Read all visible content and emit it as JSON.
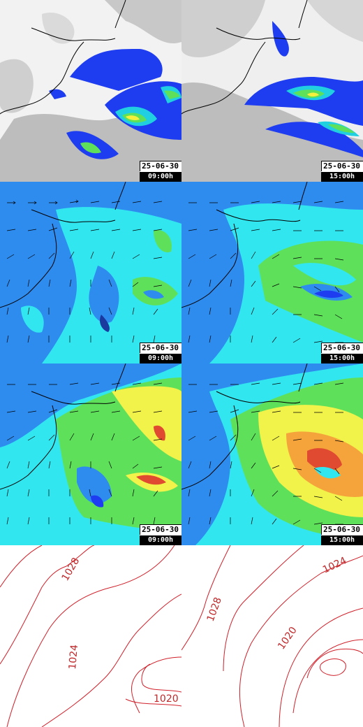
{
  "colors": {
    "coast": "#000000",
    "cloud_light": "#f1f1f1",
    "cloud_mid": "#bdbdbd",
    "precip_blue": "#1e3cf0",
    "precip_cyan": "#20d0e0",
    "precip_green": "#5ee05a",
    "precip_yellow": "#f4f03c",
    "wind_blue": "#2f8cef",
    "wind_cyan": "#32e6f0",
    "wind_green": "#5fe05b",
    "wind_yellow": "#f1f24a",
    "wind_orange": "#f4a43a",
    "wind_red": "#e04a30",
    "isobar": "#d0202a"
  },
  "panels": [
    {
      "row": "precipitation-clouds",
      "left": {
        "date": "25-06-30",
        "time": "09:00h"
      },
      "right": {
        "date": "25-06-30",
        "time": "15:00h"
      }
    },
    {
      "row": "wind-mean",
      "left": {
        "date": "25-06-30",
        "time": "09:00h"
      },
      "right": {
        "date": "25-06-30",
        "time": "15:00h"
      }
    },
    {
      "row": "wind-gusts",
      "left": {
        "date": "25-06-30",
        "time": "09:00h"
      },
      "right": {
        "date": "25-06-30",
        "time": "15:00h"
      }
    },
    {
      "row": "pressure"
    }
  ],
  "isobars": {
    "left": [
      "1028",
      "1024",
      "1020"
    ],
    "right": [
      "1028",
      "1024",
      "1020"
    ]
  }
}
